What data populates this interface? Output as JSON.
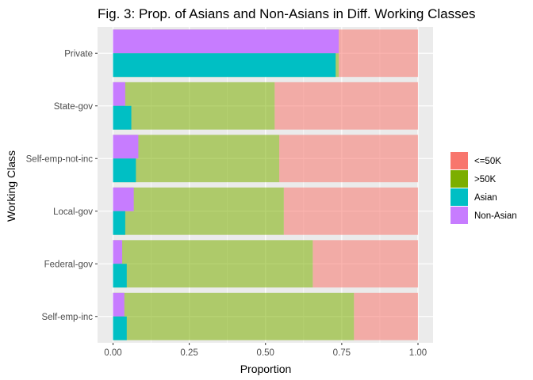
{
  "chart_data": {
    "type": "bar",
    "orientation": "horizontal",
    "title": "Fig. 3: Prop. of Asians and Non-Asians in Diff. Working Classes",
    "xlabel": "Proportion",
    "ylabel": "Working Class",
    "xlim": [
      0,
      1
    ],
    "x_ticks": [
      "0.00",
      "0.25",
      "0.50",
      "0.75",
      "1.00"
    ],
    "grid": true,
    "legend_position": "right",
    "categories": [
      "Private",
      "State-gov",
      "Self-emp-not-inc",
      "Local-gov",
      "Federal-gov",
      "Self-emp-inc"
    ],
    "income_series": [
      {
        "name": "<=50K",
        "color": "#F8766D",
        "start": [
          0.74,
          0.53,
          0.545,
          0.56,
          0.655,
          0.79
        ],
        "end": [
          1,
          1,
          1,
          1,
          1,
          1
        ]
      },
      {
        "name": ">50K",
        "color": "#7CAE00",
        "start": [
          0,
          0,
          0,
          0,
          0,
          0
        ],
        "end": [
          0.74,
          0.53,
          0.545,
          0.56,
          0.655,
          0.79
        ]
      }
    ],
    "group_series": [
      {
        "name": "Asian",
        "color": "#00BFC4",
        "values": [
          0.73,
          0.06,
          0.075,
          0.04,
          0.045,
          0.045
        ]
      },
      {
        "name": "Non-Asian",
        "color": "#C77CFF",
        "values": [
          0.74,
          0.04,
          0.083,
          0.068,
          0.03,
          0.037
        ]
      }
    ],
    "legend": [
      {
        "label": "<=50K",
        "color": "#F8766D"
      },
      {
        "label": ">50K",
        "color": "#7CAE00"
      },
      {
        "label": "Asian",
        "color": "#00BFC4"
      },
      {
        "label": "Non-Asian",
        "color": "#C77CFF"
      }
    ]
  }
}
